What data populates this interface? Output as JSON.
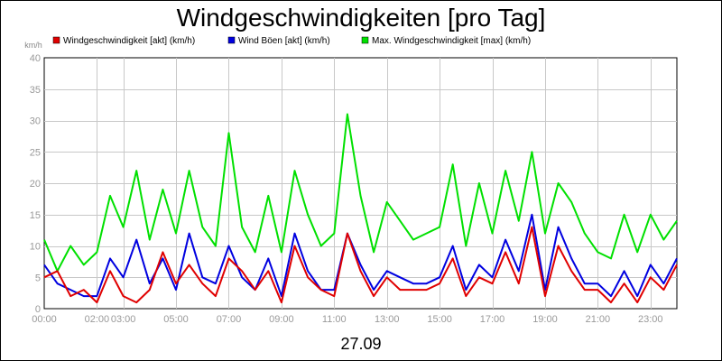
{
  "chart_data": {
    "type": "line",
    "title": "Windgeschwindigkeiten [pro Tag]",
    "ylabel": "km/h",
    "xlabel": "27.09",
    "ylim": [
      0,
      40
    ],
    "yticks": [
      0,
      5,
      10,
      15,
      20,
      25,
      30,
      35,
      40
    ],
    "xlim": [
      "00:00",
      "24:00"
    ],
    "xticks": [
      {
        "label": "00:00",
        "pos": "00:00"
      },
      {
        "label": "02:00",
        "pos": "02:00"
      },
      {
        "label": "03:00",
        "pos": "03:00"
      },
      {
        "label": "05:00",
        "pos": "05:00"
      },
      {
        "label": "07:00",
        "pos": "07:00"
      },
      {
        "label": "09:00",
        "pos": "09:00"
      },
      {
        "label": "11:00",
        "pos": "11:00"
      },
      {
        "label": "13:00",
        "pos": "13:00"
      },
      {
        "label": "15:00",
        "pos": "15:00"
      },
      {
        "label": "17:00",
        "pos": "17:00"
      },
      {
        "label": "19:00",
        "pos": "19:00"
      },
      {
        "label": "21:00",
        "pos": "21:00"
      },
      {
        "label": "23:00",
        "pos": "23:00"
      }
    ],
    "grid": true,
    "legend_position": "top",
    "x": [
      "00:00",
      "00:30",
      "01:00",
      "01:30",
      "02:00",
      "02:30",
      "03:00",
      "03:30",
      "04:00",
      "04:30",
      "05:00",
      "05:30",
      "06:00",
      "06:30",
      "07:00",
      "07:30",
      "08:00",
      "08:30",
      "09:00",
      "09:30",
      "10:00",
      "10:30",
      "11:00",
      "11:30",
      "12:00",
      "12:30",
      "13:00",
      "13:30",
      "14:00",
      "14:30",
      "15:00",
      "15:30",
      "16:00",
      "16:30",
      "17:00",
      "17:30",
      "18:00",
      "18:30",
      "19:00",
      "19:30",
      "20:00",
      "20:30",
      "21:00",
      "21:30",
      "22:00",
      "22:30",
      "23:00",
      "23:30",
      "24:00"
    ],
    "series": [
      {
        "name": "Windgeschwindigkeit [akt] (km/h)",
        "color": "#e00000",
        "values": [
          5,
          6,
          2,
          3,
          1,
          6,
          2,
          1,
          3,
          9,
          4,
          7,
          4,
          2,
          8,
          6,
          3,
          6,
          1,
          10,
          5,
          3,
          2,
          12,
          6,
          2,
          5,
          3,
          3,
          3,
          4,
          8,
          2,
          5,
          4,
          9,
          4,
          13,
          2,
          10,
          6,
          3,
          3,
          1,
          4,
          1,
          5,
          3,
          7
        ]
      },
      {
        "name": "Wind Böen [akt] (km/h)",
        "color": "#0000e0",
        "values": [
          7,
          4,
          3,
          2,
          2,
          8,
          5,
          11,
          4,
          8,
          3,
          12,
          5,
          4,
          10,
          5,
          3,
          8,
          2,
          12,
          6,
          3,
          3,
          12,
          7,
          3,
          6,
          5,
          4,
          4,
          5,
          10,
          3,
          7,
          5,
          11,
          6,
          15,
          3,
          13,
          8,
          4,
          4,
          2,
          6,
          2,
          7,
          4,
          8
        ]
      },
      {
        "name": "Max. Windgeschwindigkeit [max] (km/h)",
        "color": "#00e000",
        "values": [
          11,
          6,
          10,
          7,
          9,
          18,
          13,
          22,
          11,
          19,
          12,
          22,
          13,
          10,
          28,
          13,
          9,
          18,
          9,
          22,
          15,
          10,
          12,
          31,
          18,
          9,
          17,
          14,
          11,
          12,
          13,
          23,
          10,
          20,
          12,
          22,
          14,
          25,
          12,
          20,
          17,
          12,
          9,
          8,
          15,
          9,
          15,
          11,
          14
        ]
      }
    ]
  }
}
